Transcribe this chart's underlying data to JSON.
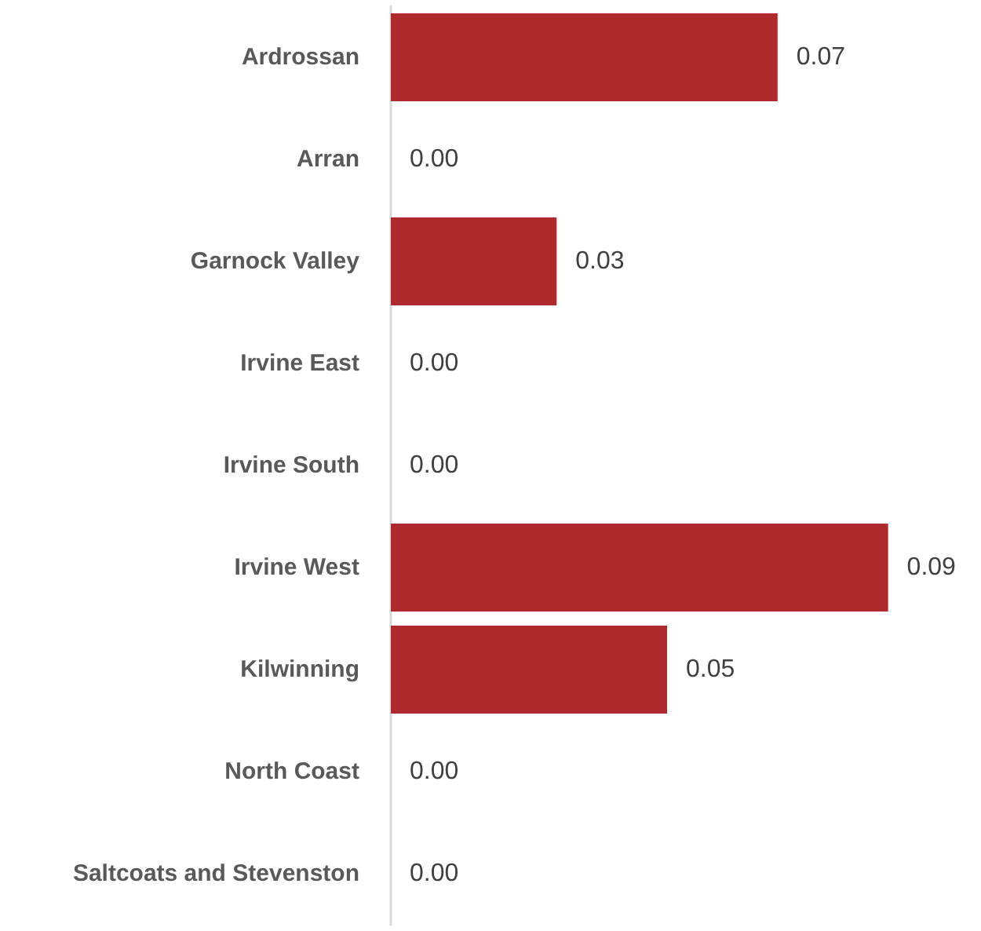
{
  "chart_data": {
    "type": "bar",
    "orientation": "horizontal",
    "categories": [
      "Ardrossan",
      "Arran",
      "Garnock Valley",
      "Irvine East",
      "Irvine South",
      "Irvine West",
      "Kilwinning",
      "North Coast",
      "Saltcoats and Stevenston"
    ],
    "values": [
      0.07,
      0,
      0.03,
      0,
      0,
      0.09,
      0.05,
      0,
      0
    ],
    "value_labels": [
      "0.07",
      "0.00",
      "0.03",
      "0.00",
      "0.00",
      "0.09",
      "0.05",
      "0.00",
      "0.00"
    ],
    "color": "#ae2a2c"
  }
}
